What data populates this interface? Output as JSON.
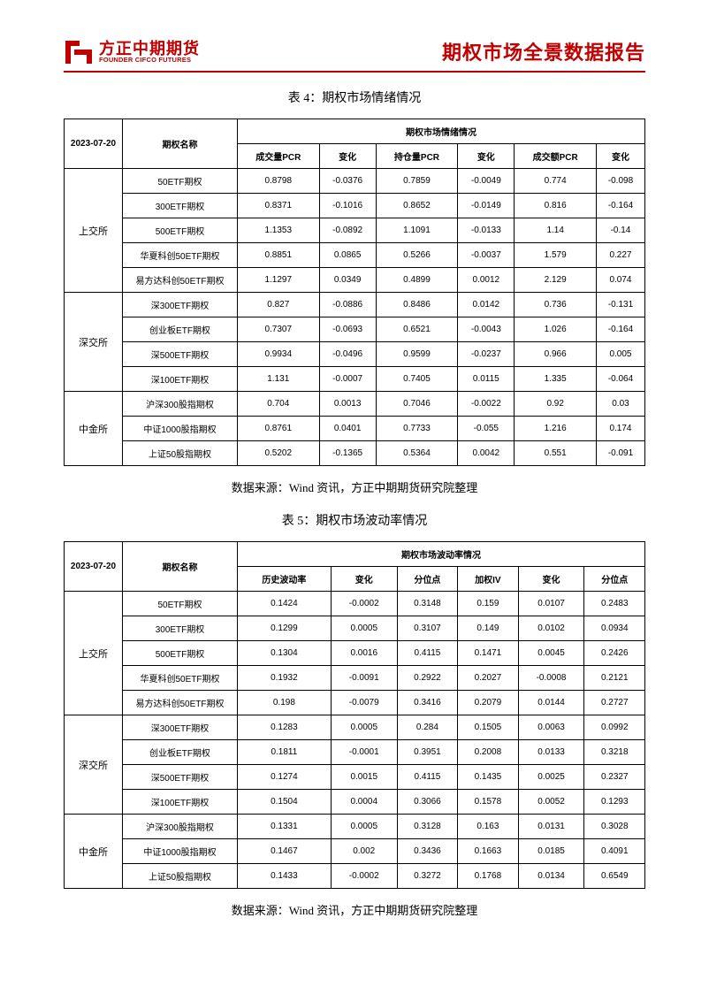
{
  "header": {
    "logo_cn": "方正中期期货",
    "logo_en": "FOUNDER CIFCO FUTURES",
    "report_title": "期权市场全景数据报告"
  },
  "date": "2023-07-20",
  "option_name_header": "期权名称",
  "source_text": "数据来源：Wind 资讯，方正中期期货研究院整理",
  "colors": {
    "brand": "#c00000",
    "border": "#000000",
    "bg": "#ffffff"
  },
  "table4": {
    "caption": "表 4：期权市场情绪情况",
    "group_header": "期权市场情绪情况",
    "columns": [
      "成交量PCR",
      "变化",
      "持仓量PCR",
      "变化",
      "成交额PCR",
      "变化"
    ],
    "exchanges": [
      {
        "name": "上交所",
        "rows": [
          {
            "name": "50ETF期权",
            "v": [
              "0.8798",
              "-0.0376",
              "0.7859",
              "-0.0049",
              "0.774",
              "-0.098"
            ]
          },
          {
            "name": "300ETF期权",
            "v": [
              "0.8371",
              "-0.1016",
              "0.8652",
              "-0.0149",
              "0.816",
              "-0.164"
            ]
          },
          {
            "name": "500ETF期权",
            "v": [
              "1.1353",
              "-0.0892",
              "1.1091",
              "-0.0133",
              "1.14",
              "-0.14"
            ]
          },
          {
            "name": "华夏科创50ETF期权",
            "v": [
              "0.8851",
              "0.0865",
              "0.5266",
              "-0.0037",
              "1.579",
              "0.227"
            ]
          },
          {
            "name": "易方达科创50ETF期权",
            "v": [
              "1.1297",
              "0.0349",
              "0.4899",
              "0.0012",
              "2.129",
              "0.074"
            ]
          }
        ]
      },
      {
        "name": "深交所",
        "rows": [
          {
            "name": "深300ETF期权",
            "v": [
              "0.827",
              "-0.0886",
              "0.8486",
              "0.0142",
              "0.736",
              "-0.131"
            ]
          },
          {
            "name": "创业板ETF期权",
            "v": [
              "0.7307",
              "-0.0693",
              "0.6521",
              "-0.0043",
              "1.026",
              "-0.164"
            ]
          },
          {
            "name": "深500ETF期权",
            "v": [
              "0.9934",
              "-0.0496",
              "0.9599",
              "-0.0237",
              "0.966",
              "0.005"
            ]
          },
          {
            "name": "深100ETF期权",
            "v": [
              "1.131",
              "-0.0007",
              "0.7405",
              "0.0115",
              "1.335",
              "-0.064"
            ]
          }
        ]
      },
      {
        "name": "中金所",
        "rows": [
          {
            "name": "沪深300股指期权",
            "v": [
              "0.704",
              "0.0013",
              "0.7046",
              "-0.0022",
              "0.92",
              "0.03"
            ]
          },
          {
            "name": "中证1000股指期权",
            "v": [
              "0.8761",
              "0.0401",
              "0.7733",
              "-0.055",
              "1.216",
              "0.174"
            ]
          },
          {
            "name": "上证50股指期权",
            "v": [
              "0.5202",
              "-0.1365",
              "0.5364",
              "0.0042",
              "0.551",
              "-0.091"
            ]
          }
        ]
      }
    ]
  },
  "table5": {
    "caption": "表 5：期权市场波动率情况",
    "group_header": "期权市场波动率情况",
    "columns": [
      "历史波动率",
      "变化",
      "分位点",
      "加权IV",
      "变化",
      "分位点"
    ],
    "exchanges": [
      {
        "name": "上交所",
        "rows": [
          {
            "name": "50ETF期权",
            "v": [
              "0.1424",
              "-0.0002",
              "0.3148",
              "0.159",
              "0.0107",
              "0.2483"
            ]
          },
          {
            "name": "300ETF期权",
            "v": [
              "0.1299",
              "0.0005",
              "0.3107",
              "0.149",
              "0.0102",
              "0.0934"
            ]
          },
          {
            "name": "500ETF期权",
            "v": [
              "0.1304",
              "0.0016",
              "0.4115",
              "0.1471",
              "0.0045",
              "0.2426"
            ]
          },
          {
            "name": "华夏科创50ETF期权",
            "v": [
              "0.1932",
              "-0.0091",
              "0.2922",
              "0.2027",
              "-0.0008",
              "0.2121"
            ]
          },
          {
            "name": "易方达科创50ETF期权",
            "v": [
              "0.198",
              "-0.0079",
              "0.3416",
              "0.2079",
              "0.0144",
              "0.2727"
            ]
          }
        ]
      },
      {
        "name": "深交所",
        "rows": [
          {
            "name": "深300ETF期权",
            "v": [
              "0.1283",
              "0.0005",
              "0.284",
              "0.1505",
              "0.0063",
              "0.0992"
            ]
          },
          {
            "name": "创业板ETF期权",
            "v": [
              "0.1811",
              "-0.0001",
              "0.3951",
              "0.2008",
              "0.0133",
              "0.3218"
            ]
          },
          {
            "name": "深500ETF期权",
            "v": [
              "0.1274",
              "0.0015",
              "0.4115",
              "0.1435",
              "0.0025",
              "0.2327"
            ]
          },
          {
            "name": "深100ETF期权",
            "v": [
              "0.1504",
              "0.0004",
              "0.3066",
              "0.1578",
              "0.0052",
              "0.1293"
            ]
          }
        ]
      },
      {
        "name": "中金所",
        "rows": [
          {
            "name": "沪深300股指期权",
            "v": [
              "0.1331",
              "0.0005",
              "0.3128",
              "0.163",
              "0.0131",
              "0.3028"
            ]
          },
          {
            "name": "中证1000股指期权",
            "v": [
              "0.1467",
              "0.002",
              "0.3436",
              "0.1663",
              "0.0185",
              "0.4091"
            ]
          },
          {
            "name": "上证50股指期权",
            "v": [
              "0.1433",
              "-0.0002",
              "0.3272",
              "0.1768",
              "0.0134",
              "0.6549"
            ]
          }
        ]
      }
    ]
  }
}
